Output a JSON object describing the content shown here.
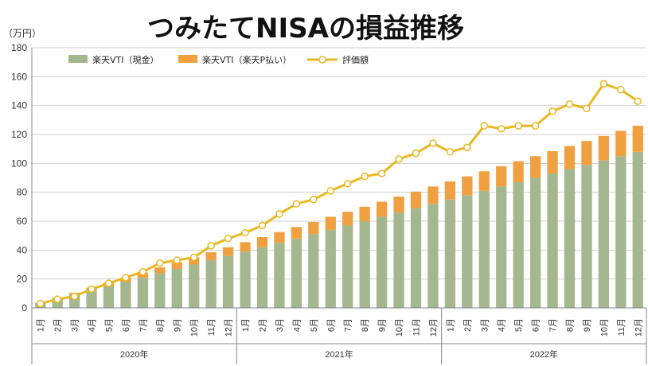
{
  "chart_data": {
    "type": "bar",
    "title": "つみたてNISAの損益推移",
    "unit_label": "（万円）",
    "ylim": [
      0,
      180
    ],
    "yticks": [
      0,
      20,
      40,
      60,
      80,
      100,
      120,
      140,
      160,
      180
    ],
    "grid": true,
    "legend_position": "top",
    "month_labels": [
      "1月",
      "2月",
      "3月",
      "4月",
      "5月",
      "6月",
      "7月",
      "8月",
      "9月",
      "10月",
      "11月",
      "12月"
    ],
    "year_labels": [
      "2020年",
      "2021年",
      "2022年"
    ],
    "series": [
      {
        "name": "楽天VTI（現金）",
        "kind": "stacked-bar",
        "color": "#a5b78e",
        "values": [
          3,
          6,
          9,
          12,
          15,
          18,
          21,
          24,
          27,
          30,
          33,
          36,
          39,
          42,
          45,
          48,
          51,
          54,
          57,
          60,
          63,
          66,
          69,
          72,
          75,
          78,
          81,
          84,
          87,
          90,
          93,
          96,
          99,
          102,
          105,
          108
        ]
      },
      {
        "name": "楽天VTI（楽天P払い）",
        "kind": "stacked-bar",
        "color": "#f0a040",
        "values": [
          0.5,
          1,
          1.5,
          2,
          2.5,
          3,
          3.5,
          4,
          4.5,
          5,
          5.5,
          6,
          6.5,
          7,
          7.5,
          8,
          8.5,
          9,
          9.5,
          10,
          10.5,
          11,
          11.5,
          12,
          12.5,
          13,
          13.5,
          14,
          14.5,
          15,
          15.5,
          16,
          16.5,
          17,
          17.5,
          18
        ]
      },
      {
        "name": "評価額",
        "kind": "line",
        "color": "#e8b820",
        "values": [
          3,
          6,
          8,
          13,
          17,
          21,
          25,
          31,
          33,
          35,
          43,
          48,
          52,
          57,
          65,
          72,
          75,
          81,
          86,
          91,
          93,
          103,
          107,
          114,
          108,
          111,
          126,
          124,
          126,
          126,
          136,
          141,
          138,
          155,
          151,
          143
        ]
      }
    ]
  }
}
